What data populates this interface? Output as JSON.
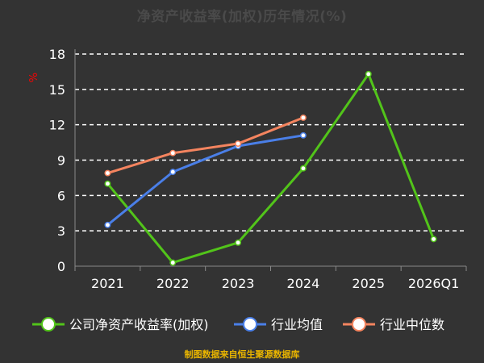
{
  "chart_data": {
    "type": "line",
    "title": "净资产收益率(加权)历年情况(%)",
    "ylabel": "%",
    "ylim": [
      0,
      18
    ],
    "yticks": [
      0,
      3,
      6,
      9,
      12,
      15,
      18
    ],
    "categories": [
      "2021",
      "2022",
      "2023",
      "2024",
      "2025",
      "2026Q1"
    ],
    "grid": true,
    "legend_position": "bottom",
    "series": [
      {
        "name": "公司净资产收益率(加权)",
        "color": "#52c41a",
        "values": [
          7.0,
          0.3,
          2.0,
          8.3,
          16.3,
          2.3
        ]
      },
      {
        "name": "行业均值",
        "color": "#4a7fe8",
        "values": [
          3.5,
          8.0,
          10.2,
          11.1,
          null,
          null
        ]
      },
      {
        "name": "行业中位数",
        "color": "#f4845f",
        "values": [
          7.9,
          9.6,
          10.4,
          12.6,
          null,
          null
        ]
      }
    ]
  },
  "footer": {
    "source": "制图数据来自恒生聚源数据库"
  }
}
